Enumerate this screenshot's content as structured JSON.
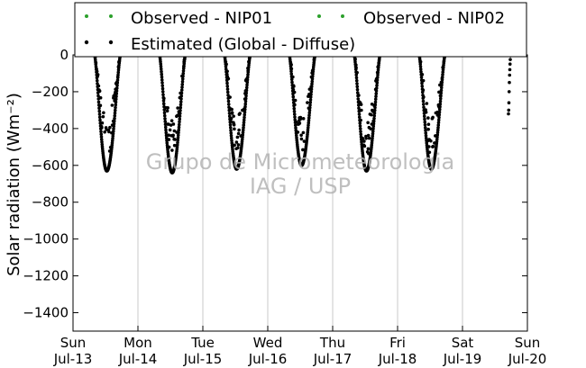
{
  "colors": {
    "observed_marker": "#2ca02c",
    "estimated_marker": "#000000",
    "grid": "#c8c8c8",
    "watermark": "#b4b4b4"
  },
  "chart_data": {
    "type": "scatter",
    "ylabel": "Solar radiation (Wm⁻²)",
    "ylim": [
      -1500,
      0
    ],
    "yticks": [
      0,
      -200,
      -400,
      -600,
      -800,
      -1000,
      -1200,
      -1400
    ],
    "x_range": [
      "2014-07-13",
      "2014-07-20"
    ],
    "x_ticks": [
      {
        "date": "2014-07-13",
        "label_top": "Sun",
        "label_bottom": "Jul-13"
      },
      {
        "date": "2014-07-14",
        "label_top": "Mon",
        "label_bottom": "Jul-14"
      },
      {
        "date": "2014-07-15",
        "label_top": "Tue",
        "label_bottom": "Jul-15"
      },
      {
        "date": "2014-07-16",
        "label_top": "Wed",
        "label_bottom": "Jul-16"
      },
      {
        "date": "2014-07-17",
        "label_top": "Thu",
        "label_bottom": "Jul-17"
      },
      {
        "date": "2014-07-18",
        "label_top": "Fri",
        "label_bottom": "Jul-18"
      },
      {
        "date": "2014-07-19",
        "label_top": "Sat",
        "label_bottom": "Jul-19"
      },
      {
        "date": "2014-07-20",
        "label_top": "Sun",
        "label_bottom": "Jul-20"
      }
    ],
    "grid": "vertical at day boundaries",
    "legend_placement": "top",
    "series": [
      {
        "name": "Observed - NIP01",
        "color": "#2ca02c",
        "points": []
      },
      {
        "name": "Observed - NIP02",
        "color": "#2ca02c",
        "points": []
      },
      {
        "name": "Estimated (Global - Diffuse)",
        "color": "#000000",
        "daily_curves": [
          {
            "date": "2014-07-13",
            "rise": "08:00",
            "set": "17:30",
            "min": -630,
            "min_time": "12:30"
          },
          {
            "date": "2014-07-14",
            "rise": "08:00",
            "set": "17:30",
            "min": -640,
            "min_time": "12:40"
          },
          {
            "date": "2014-07-15",
            "rise": "08:00",
            "set": "17:30",
            "min": -620,
            "min_time": "12:30"
          },
          {
            "date": "2014-07-16",
            "rise": "08:00",
            "set": "17:30",
            "min": -600,
            "min_time": "12:30"
          },
          {
            "date": "2014-07-17",
            "rise": "08:00",
            "set": "17:30",
            "min": -630,
            "min_time": "12:30"
          },
          {
            "date": "2014-07-18",
            "rise": "08:00",
            "set": "17:30",
            "min": -620,
            "min_time": "12:30"
          }
        ],
        "partial_curves": [
          {
            "date": "2014-07-19",
            "points": [
              {
                "time": "17:00",
                "y": -320
              },
              {
                "time": "17:05",
                "y": -300
              },
              {
                "time": "17:10",
                "y": -260
              },
              {
                "time": "17:15",
                "y": -200
              },
              {
                "time": "17:20",
                "y": -150
              },
              {
                "time": "17:25",
                "y": -110
              },
              {
                "time": "17:30",
                "y": -80
              },
              {
                "time": "17:35",
                "y": -50
              },
              {
                "time": "17:40",
                "y": -25
              },
              {
                "time": "17:45",
                "y": -5
              }
            ]
          }
        ]
      }
    ],
    "watermark": [
      "Grupo de Micrometeorologia",
      "IAG / USP"
    ]
  }
}
